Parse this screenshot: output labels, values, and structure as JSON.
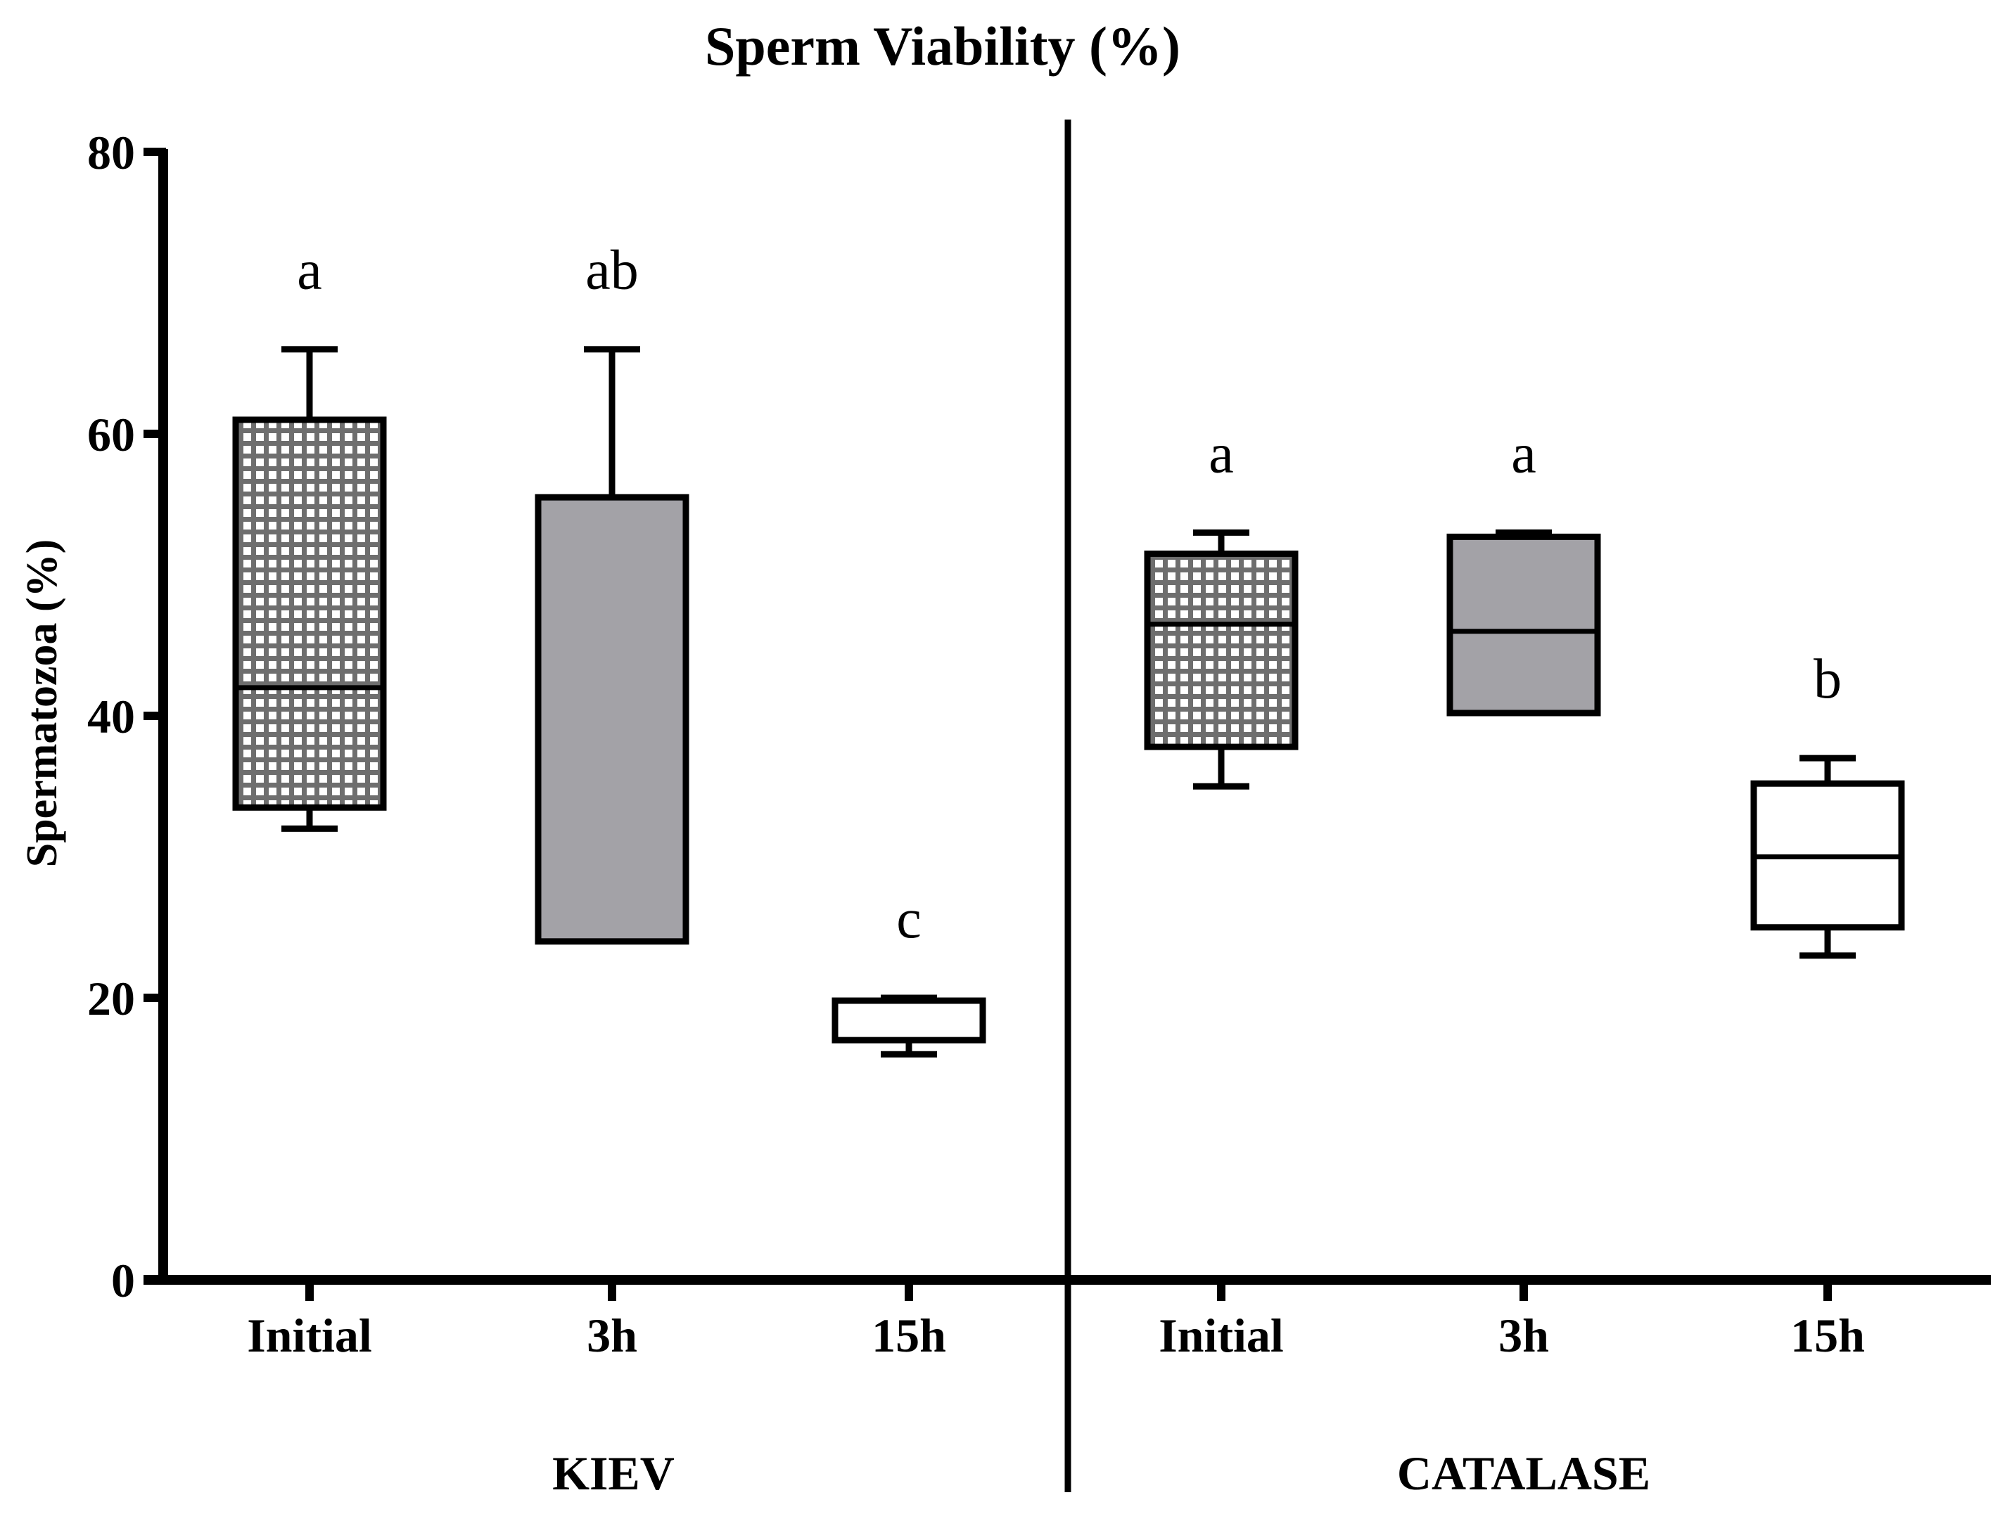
{
  "chart_data": {
    "type": "box",
    "title": "Sperm Viability (%)",
    "ylabel": "Spermatozoa (%)",
    "xlabel": "",
    "ylim": [
      0,
      80
    ],
    "yticks": [
      "0",
      "20",
      "40",
      "60",
      "80"
    ],
    "groups": [
      {
        "name": "KIEV",
        "boxes": [
          {
            "category": "Initial",
            "min": 32,
            "q1": 33.5,
            "median": 42,
            "q3": 61,
            "max": 66,
            "fill": "checkered",
            "significance": "a"
          },
          {
            "category": "3h",
            "min": 24,
            "q1": 24,
            "median": 24,
            "q3": 55.5,
            "max": 66,
            "fill": "gray",
            "significance": "ab"
          },
          {
            "category": "15h",
            "min": 16,
            "q1": 17,
            "median": 19.8,
            "q3": 19.8,
            "max": 20,
            "fill": "white",
            "significance": "c"
          }
        ]
      },
      {
        "name": "CATALASE",
        "boxes": [
          {
            "category": "Initial",
            "min": 35,
            "q1": 37.8,
            "median": 46.5,
            "q3": 51.5,
            "max": 53,
            "fill": "checkered",
            "significance": "a"
          },
          {
            "category": "3h",
            "min": 40.2,
            "q1": 40.2,
            "median": 46,
            "q3": 52.7,
            "max": 53,
            "fill": "gray",
            "significance": "a"
          },
          {
            "category": "15h",
            "min": 23,
            "q1": 25,
            "median": 30,
            "q3": 35.2,
            "max": 37,
            "fill": "white",
            "significance": "b"
          }
        ]
      }
    ],
    "colors": {
      "gray": "#a3a2a7",
      "checker_light": "#ffffff",
      "checker_dark": "#6e6e6e",
      "stroke": "#000000"
    }
  }
}
